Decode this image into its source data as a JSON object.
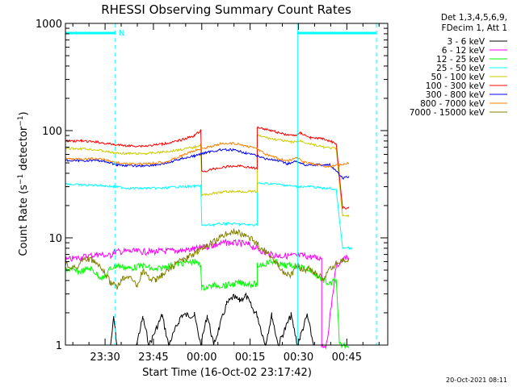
{
  "chart_data": {
    "type": "line",
    "title": "RHESSI Observing Summary Count Rates",
    "xlabel": "Start Time (16-Oct-02 23:17:42)",
    "ylabel": "Count Rate (s⁻¹ detector⁻¹)",
    "ylabel_main": "Count Rate (s",
    "ylabel_sup1": "−1",
    "ylabel_mid": " detector",
    "ylabel_sup2": "−1",
    "ylabel_end": ")",
    "yscale": "log",
    "ylim": [
      1,
      1000
    ],
    "xlim_minutes_after_start": [
      0,
      100
    ],
    "x_ticks": [
      {
        "label": "23:30",
        "min": 12.3
      },
      {
        "label": "23:45",
        "min": 27.3
      },
      {
        "label": "00:00",
        "min": 42.3
      },
      {
        "label": "00:15",
        "min": 57.3
      },
      {
        "label": "00:30",
        "min": 72.3
      },
      {
        "label": "00:45",
        "min": 87.3
      }
    ],
    "y_ticks": [
      {
        "label": "1",
        "value": 1
      },
      {
        "label": "10",
        "value": 10
      },
      {
        "label": "100",
        "value": 100
      },
      {
        "label": "1000",
        "value": 1000
      }
    ],
    "legend_header": [
      "Det 1,3,4,5,6,9,",
      "FDecim 1, Att 1"
    ],
    "legend_position": "right",
    "annotations": {
      "night_marker": "N",
      "timestamp": "20-Oct-2021 08:11"
    },
    "markers": {
      "night_bar_1": {
        "from_min": 0,
        "to_min": 15.5
      },
      "night_bar_2": {
        "from_min": 72.0,
        "to_min": 96.5
      },
      "dashed_lines_min": [
        15.5,
        96.5
      ],
      "solid_lines_min": [
        0,
        72.0
      ]
    },
    "series": [
      {
        "name": "3 - 6 keV",
        "color": "#000000",
        "points": [
          [
            14,
            1.0
          ],
          [
            15,
            1.8
          ],
          [
            16,
            1.0
          ],
          [
            22,
            1.0
          ],
          [
            24,
            1.8
          ],
          [
            26,
            1.0
          ],
          [
            30,
            1.9
          ],
          [
            32,
            1.0
          ],
          [
            36,
            1.9
          ],
          [
            40,
            1.9
          ],
          [
            42,
            1.0
          ],
          [
            44,
            1.9
          ],
          [
            46,
            1.0
          ],
          [
            50,
            2.4
          ],
          [
            52,
            2.8
          ],
          [
            54,
            2.6
          ],
          [
            56,
            2.9
          ],
          [
            58,
            2.2
          ],
          [
            59.5,
            1.9
          ],
          [
            62,
            1.0
          ],
          [
            64,
            1.9
          ],
          [
            66,
            1.0
          ],
          [
            70,
            1.9
          ],
          [
            72,
            1.0
          ],
          [
            75,
            1.9
          ],
          [
            77,
            1.0
          ]
        ]
      },
      {
        "name": "6 - 12 keV",
        "color": "#ff00ff",
        "points": [
          [
            0,
            6.2
          ],
          [
            5,
            6.6
          ],
          [
            10,
            7.0
          ],
          [
            14,
            6.8
          ],
          [
            15,
            7.4
          ],
          [
            20,
            7.5
          ],
          [
            25,
            7.4
          ],
          [
            30,
            7.5
          ],
          [
            35,
            7.6
          ],
          [
            40,
            7.8
          ],
          [
            43,
            8.2
          ],
          [
            46,
            8.6
          ],
          [
            50,
            9.0
          ],
          [
            54,
            8.9
          ],
          [
            57,
            8.6
          ],
          [
            59.5,
            8.0
          ],
          [
            62,
            7.2
          ],
          [
            66,
            6.8
          ],
          [
            70,
            6.8
          ],
          [
            74,
            6.8
          ],
          [
            78,
            6.5
          ],
          [
            79.5,
            6.5
          ],
          [
            79.5,
            1.0
          ],
          [
            81,
            1.0
          ],
          [
            84,
            5.5
          ],
          [
            87,
            6.5
          ],
          [
            88,
            6.2
          ]
        ]
      },
      {
        "name": "12 - 25 keV",
        "color": "#00ff00",
        "points": [
          [
            0,
            5.2
          ],
          [
            4,
            4.8
          ],
          [
            8,
            5.2
          ],
          [
            10,
            4.5
          ],
          [
            12,
            4.2
          ],
          [
            14,
            5.2
          ],
          [
            16,
            5.5
          ],
          [
            20,
            5.2
          ],
          [
            24,
            5.5
          ],
          [
            28,
            5.0
          ],
          [
            32,
            5.5
          ],
          [
            36,
            5.8
          ],
          [
            40,
            6.0
          ],
          [
            42,
            5.5
          ],
          [
            42.3,
            3.4
          ],
          [
            46,
            3.6
          ],
          [
            50,
            3.6
          ],
          [
            54,
            3.8
          ],
          [
            58,
            3.7
          ],
          [
            59.5,
            3.7
          ],
          [
            59.5,
            5.5
          ],
          [
            64,
            6.0
          ],
          [
            68,
            5.5
          ],
          [
            72,
            5.5
          ],
          [
            76,
            5.0
          ],
          [
            80,
            4.0
          ],
          [
            82,
            3.7
          ],
          [
            84,
            4.0
          ],
          [
            85,
            1.0
          ],
          [
            88,
            1.0
          ]
        ]
      },
      {
        "name": "25 - 50 keV",
        "color": "#00ffff",
        "points": [
          [
            0,
            32
          ],
          [
            5,
            31
          ],
          [
            10,
            31
          ],
          [
            15,
            30
          ],
          [
            20,
            29
          ],
          [
            25,
            29
          ],
          [
            30,
            29
          ],
          [
            35,
            30
          ],
          [
            40,
            30
          ],
          [
            42,
            31
          ],
          [
            42.3,
            13.0
          ],
          [
            46,
            13.3
          ],
          [
            50,
            13.6
          ],
          [
            54,
            13.4
          ],
          [
            58,
            13.2
          ],
          [
            59.5,
            13.3
          ],
          [
            59.5,
            32
          ],
          [
            64,
            32
          ],
          [
            68,
            31
          ],
          [
            72,
            30
          ],
          [
            76,
            30
          ],
          [
            80,
            29
          ],
          [
            82,
            29
          ],
          [
            84,
            28
          ],
          [
            86,
            8.0
          ],
          [
            88,
            8.0
          ],
          [
            89,
            8.0
          ]
        ]
      },
      {
        "name": "50 - 100 keV",
        "color": "#cccc00",
        "points": [
          [
            0,
            68
          ],
          [
            5,
            68
          ],
          [
            10,
            66
          ],
          [
            15,
            62
          ],
          [
            20,
            61
          ],
          [
            25,
            61
          ],
          [
            30,
            63
          ],
          [
            35,
            66
          ],
          [
            40,
            70
          ],
          [
            42,
            74
          ],
          [
            42.3,
            25
          ],
          [
            46,
            26
          ],
          [
            50,
            27
          ],
          [
            54,
            27
          ],
          [
            58,
            27
          ],
          [
            59.5,
            27
          ],
          [
            59.5,
            90
          ],
          [
            64,
            84
          ],
          [
            68,
            80
          ],
          [
            70,
            78
          ],
          [
            73,
            80
          ],
          [
            76,
            75
          ],
          [
            80,
            70
          ],
          [
            84,
            68
          ],
          [
            86,
            16
          ],
          [
            88,
            16
          ]
        ]
      },
      {
        "name": "100 - 300 keV",
        "color": "#ff0000",
        "points": [
          [
            0,
            80
          ],
          [
            5,
            80
          ],
          [
            10,
            78
          ],
          [
            15,
            74
          ],
          [
            20,
            72
          ],
          [
            25,
            72
          ],
          [
            30,
            75
          ],
          [
            35,
            80
          ],
          [
            40,
            90
          ],
          [
            42,
            100
          ],
          [
            42.3,
            41
          ],
          [
            46,
            44
          ],
          [
            50,
            46
          ],
          [
            54,
            47
          ],
          [
            58,
            45
          ],
          [
            59.5,
            44
          ],
          [
            59.5,
            108
          ],
          [
            64,
            100
          ],
          [
            68,
            92
          ],
          [
            71,
            90
          ],
          [
            73,
            95
          ],
          [
            76,
            86
          ],
          [
            80,
            84
          ],
          [
            84,
            76
          ],
          [
            86,
            19
          ],
          [
            88,
            19
          ]
        ]
      },
      {
        "name": "300 - 800 keV",
        "color": "#0000ff",
        "points": [
          [
            0,
            53
          ],
          [
            4,
            52
          ],
          [
            8,
            53
          ],
          [
            12,
            52
          ],
          [
            16,
            48
          ],
          [
            20,
            47
          ],
          [
            24,
            47
          ],
          [
            28,
            48
          ],
          [
            32,
            50
          ],
          [
            36,
            55
          ],
          [
            40,
            58
          ],
          [
            44,
            63
          ],
          [
            48,
            66
          ],
          [
            52,
            66
          ],
          [
            56,
            62
          ],
          [
            59.5,
            58
          ],
          [
            62,
            55
          ],
          [
            66,
            52
          ],
          [
            69,
            49
          ],
          [
            72,
            52
          ],
          [
            74,
            48
          ],
          [
            78,
            48
          ],
          [
            82,
            48
          ],
          [
            86,
            36
          ],
          [
            88,
            37
          ]
        ]
      },
      {
        "name": "800 - 7000 keV",
        "color": "#ff8000",
        "points": [
          [
            0,
            55
          ],
          [
            4,
            54
          ],
          [
            8,
            55
          ],
          [
            12,
            54
          ],
          [
            16,
            50
          ],
          [
            20,
            49
          ],
          [
            24,
            49
          ],
          [
            28,
            50
          ],
          [
            32,
            52
          ],
          [
            36,
            58
          ],
          [
            40,
            65
          ],
          [
            44,
            70
          ],
          [
            48,
            75
          ],
          [
            52,
            76
          ],
          [
            56,
            72
          ],
          [
            59.5,
            68
          ],
          [
            62,
            60
          ],
          [
            66,
            55
          ],
          [
            69,
            52
          ],
          [
            72,
            56
          ],
          [
            74,
            51
          ],
          [
            78,
            48
          ],
          [
            82,
            46
          ],
          [
            85,
            48
          ],
          [
            88,
            50
          ]
        ]
      },
      {
        "name": "7000 - 15000 keV",
        "color": "#808000",
        "points": [
          [
            0,
            5.8
          ],
          [
            3,
            5.2
          ],
          [
            6,
            6.5
          ],
          [
            9,
            6.0
          ],
          [
            12,
            4.8
          ],
          [
            14,
            3.8
          ],
          [
            16,
            3.5
          ],
          [
            18,
            4.2
          ],
          [
            20,
            4.5
          ],
          [
            22,
            3.5
          ],
          [
            24,
            5.0
          ],
          [
            26,
            4.2
          ],
          [
            28,
            4.0
          ],
          [
            30,
            4.5
          ],
          [
            32,
            5.0
          ],
          [
            35,
            6.0
          ],
          [
            38,
            6.5
          ],
          [
            41,
            7.5
          ],
          [
            44,
            8.5
          ],
          [
            47,
            9.5
          ],
          [
            50,
            11.0
          ],
          [
            53,
            11.5
          ],
          [
            56,
            10.5
          ],
          [
            58,
            9.5
          ],
          [
            60,
            8.5
          ],
          [
            62,
            7.5
          ],
          [
            64,
            6.5
          ],
          [
            66,
            5.5
          ],
          [
            68,
            4.8
          ],
          [
            70,
            4.5
          ],
          [
            72,
            5.5
          ],
          [
            74,
            5.0
          ],
          [
            76,
            5.2
          ],
          [
            78,
            4.5
          ],
          [
            80,
            4.2
          ],
          [
            82,
            5.0
          ],
          [
            84,
            5.8
          ],
          [
            86,
            6.2
          ],
          [
            88,
            6.0
          ]
        ]
      }
    ]
  }
}
